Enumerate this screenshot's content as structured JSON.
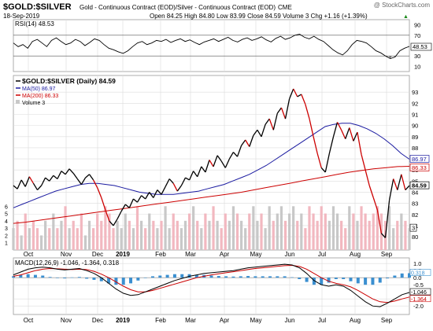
{
  "header": {
    "symbol": "$GOLD:$SILVER",
    "description": "Gold - Continuous Contract (EOD)/Silver - Continuous Contract (EOD)",
    "exchange": "CME",
    "watermark": "@ StockCharts.com",
    "date": "18-Sep-2019",
    "quote": "Open 84.25  High 84.80  Low 83.99  Close 84.59  Volume 3  Chg +1.16 (+1.39%)",
    "change_arrow": "▲"
  },
  "colors": {
    "price_line": "#000000",
    "price_up_line": "#000000",
    "price_down_line": "#cc0000",
    "ma50": "#1a1aa0",
    "ma200": "#cc0000",
    "volume_up": "#c8c8c8",
    "volume_down": "#f2b8c0",
    "macd_line": "#000000",
    "signal_line": "#cc0000",
    "histogram": "#3a8fd0",
    "rsi_line": "#000000",
    "rsi_fill": "#7a7a7a",
    "grid": "#dcdcdc"
  },
  "chart_data": [
    {
      "type": "line",
      "panel": "rsi",
      "legend": "RSI(14) 48.53",
      "ylim": [
        0,
        100
      ],
      "y_ticks": [
        10,
        30,
        70,
        90
      ],
      "last_value": "48.53",
      "reference_lines": [
        30,
        70
      ],
      "x_labels": [
        "Oct",
        "Nov",
        "Dec",
        "2019",
        "Feb",
        "Mar",
        "Apr",
        "May",
        "Jun",
        "Jul",
        "Aug",
        "Sep"
      ],
      "series": [
        {
          "values": [
            55,
            48,
            52,
            45,
            58,
            62,
            55,
            48,
            60,
            65,
            58,
            52,
            55,
            62,
            58,
            50,
            56,
            63,
            60,
            52,
            45,
            42,
            38,
            35,
            40,
            48,
            55,
            58,
            52,
            55,
            60,
            58,
            62,
            56,
            60,
            63,
            58,
            61,
            56,
            52,
            57,
            60,
            63,
            58,
            62,
            66,
            60,
            57,
            62,
            65,
            60,
            63,
            67,
            61,
            57,
            64,
            68,
            62,
            65,
            70,
            72,
            66,
            63,
            68,
            62,
            58,
            50,
            42,
            36,
            32,
            40,
            52,
            60,
            58,
            55,
            48,
            40,
            36,
            30,
            25,
            28,
            40,
            45,
            48.53
          ]
        }
      ]
    },
    {
      "type": "line",
      "panel": "price",
      "legend": [
        "$GOLD:$SILVER (Daily) 84.59",
        "MA(50) 86.97",
        "MA(200) 86.33",
        "Volume 3"
      ],
      "ylim": [
        78.8,
        94.5
      ],
      "y_ticks": [
        80,
        81,
        82,
        83,
        84,
        85,
        86,
        87,
        88,
        89,
        90,
        91,
        92,
        93
      ],
      "volume_ticks": [
        1,
        2,
        3,
        4,
        5,
        6
      ],
      "volume_ylim": [
        0,
        14
      ],
      "x_labels": [
        "Oct",
        "Nov",
        "Dec",
        "2019",
        "Feb",
        "Mar",
        "Apr",
        "May",
        "Jun",
        "Jul",
        "Aug",
        "Sep"
      ],
      "last_values": {
        "ma50": "86.97",
        "ma200": "86.33",
        "close": "84.59",
        "volume": "3"
      },
      "series": [
        {
          "name": "$GOLD:$SILVER (Daily)",
          "values": [
            84.6,
            84.3,
            85.1,
            84.5,
            85.4,
            84.8,
            84.2,
            84.6,
            85.3,
            85.0,
            85.5,
            85.2,
            85.9,
            85.6,
            86.1,
            85.7,
            85.2,
            84.7,
            85.3,
            85.6,
            85.1,
            84.4,
            83.5,
            82.4,
            81.4,
            81.0,
            81.6,
            82.3,
            82.9,
            82.6,
            83.4,
            83.1,
            83.7,
            83.4,
            84.0,
            83.5,
            84.2,
            83.8,
            84.5,
            85.2,
            84.8,
            84.1,
            84.6,
            85.3,
            85.1,
            85.9,
            85.4,
            86.3,
            85.8,
            86.9,
            86.3,
            87.3,
            86.8,
            86.2,
            87.0,
            87.6,
            87.2,
            88.2,
            88.7,
            88.1,
            89.1,
            89.6,
            89.0,
            90.1,
            90.6,
            89.6,
            91.1,
            91.6,
            90.6,
            92.4,
            93.3,
            92.6,
            92.8,
            91.9,
            90.6,
            89.0,
            87.5,
            86.2,
            85.8,
            87.5,
            89.0,
            90.3,
            89.6,
            88.8,
            89.8,
            88.6,
            89.4,
            87.4,
            86.0,
            84.6,
            83.5,
            82.4,
            80.3,
            79.9,
            83.3,
            85.2,
            84.2,
            85.6,
            84.2,
            84.59
          ]
        },
        {
          "name": "MA(50)",
          "values": [
            82.6,
            82.9,
            83.2,
            83.5,
            83.8,
            84.1,
            84.3,
            84.5,
            84.7,
            84.8,
            84.8,
            84.7,
            84.6,
            84.4,
            84.2,
            84.0,
            83.9,
            83.8,
            83.8,
            83.8,
            83.9,
            84.0,
            84.1,
            84.3,
            84.5,
            84.7,
            85.0,
            85.3,
            85.6,
            86.0,
            86.4,
            86.9,
            87.4,
            87.9,
            88.4,
            88.9,
            89.4,
            89.9,
            90.1,
            90.2,
            90.2,
            90.0,
            89.7,
            89.3,
            88.8,
            88.2,
            87.5,
            86.97
          ]
        },
        {
          "name": "MA(200)",
          "values": [
            81.2,
            81.3,
            81.45,
            81.6,
            81.75,
            81.9,
            82.05,
            82.2,
            82.35,
            82.5,
            82.65,
            82.8,
            82.95,
            83.1,
            83.25,
            83.4,
            83.55,
            83.7,
            83.85,
            84.0,
            84.2,
            84.4,
            84.6,
            84.8,
            85.0,
            85.2,
            85.4,
            85.6,
            85.8,
            85.95,
            86.1,
            86.2,
            86.3,
            86.33
          ]
        },
        {
          "name": "Volume",
          "values": [
            3,
            4,
            2,
            5,
            3,
            4,
            3,
            2,
            4,
            3,
            5,
            3,
            4,
            6,
            3,
            4,
            3,
            5,
            2,
            4,
            3,
            5,
            4,
            6,
            5,
            3,
            4,
            3,
            5,
            4,
            3,
            6,
            4,
            3,
            5,
            4,
            3,
            4,
            6,
            3,
            5,
            4,
            3,
            4,
            5,
            6,
            4,
            3,
            5,
            4,
            6,
            4,
            3,
            5,
            4,
            6,
            5,
            4,
            3,
            5,
            6,
            4,
            5,
            3,
            6,
            4,
            5,
            6,
            4,
            5,
            6,
            4,
            5,
            3,
            6,
            5,
            4,
            6,
            5,
            4,
            6,
            5,
            4,
            3,
            6,
            5,
            4,
            6,
            5,
            4,
            5,
            6,
            5,
            4,
            6,
            3,
            4,
            5,
            4,
            3
          ]
        }
      ]
    },
    {
      "type": "line",
      "panel": "macd",
      "legend": "MACD(12,26,9) -1.046, -1.364, 0.318",
      "ylim": [
        -2.6,
        1.4
      ],
      "y_ticks": [
        -2.0,
        -1.5,
        -0.5,
        0.0,
        0.5,
        1.0
      ],
      "last_values": {
        "macd": "-1.046",
        "signal": "-1.364",
        "histogram": "0.318"
      },
      "x_labels": [
        "Oct",
        "Nov",
        "Dec",
        "2019",
        "Feb",
        "Mar",
        "Apr",
        "May",
        "Jun",
        "Jul",
        "Aug",
        "Sep"
      ],
      "series": [
        {
          "name": "MACD",
          "values": [
            0.2,
            0.4,
            0.6,
            0.7,
            0.75,
            0.7,
            0.6,
            0.55,
            0.6,
            0.65,
            0.5,
            0.3,
            0.0,
            -0.4,
            -0.8,
            -1.1,
            -1.25,
            -1.2,
            -1.0,
            -0.8,
            -0.6,
            -0.4,
            -0.2,
            -0.05,
            0.1,
            0.2,
            0.3,
            0.35,
            0.4,
            0.45,
            0.5,
            0.6,
            0.7,
            0.75,
            0.8,
            0.85,
            0.9,
            0.95,
            0.9,
            0.7,
            0.3,
            -0.2,
            -0.5,
            -0.6,
            -0.5,
            -0.6,
            -0.9,
            -1.3,
            -1.7,
            -2.0,
            -2.05,
            -1.8,
            -1.5,
            -1.2,
            -1.046
          ]
        },
        {
          "name": "Signal",
          "values": [
            0.1,
            0.2,
            0.35,
            0.5,
            0.6,
            0.65,
            0.63,
            0.6,
            0.58,
            0.6,
            0.57,
            0.45,
            0.25,
            0.0,
            -0.3,
            -0.6,
            -0.85,
            -1.0,
            -1.0,
            -0.9,
            -0.75,
            -0.6,
            -0.45,
            -0.3,
            -0.15,
            0.0,
            0.1,
            0.2,
            0.28,
            0.35,
            0.42,
            0.5,
            0.58,
            0.65,
            0.7,
            0.75,
            0.8,
            0.85,
            0.87,
            0.8,
            0.6,
            0.3,
            0.0,
            -0.25,
            -0.4,
            -0.5,
            -0.65,
            -0.9,
            -1.2,
            -1.5,
            -1.7,
            -1.75,
            -1.65,
            -1.5,
            -1.364
          ]
        }
      ]
    }
  ]
}
